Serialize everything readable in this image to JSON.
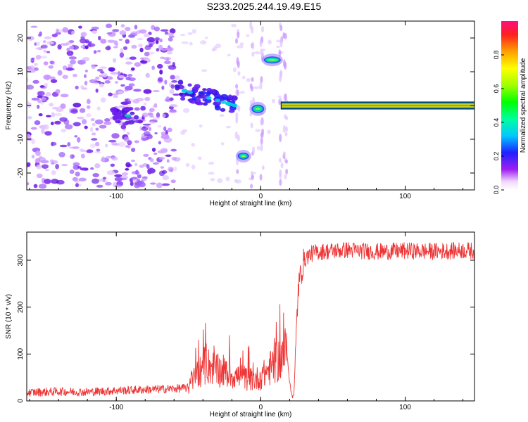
{
  "chart_data": [
    {
      "type": "heatmap",
      "title": "S233.2025.244.19.49.E15",
      "xlabel": "Height of straight line (km)",
      "ylabel": "Frequency (Hz)",
      "xlim": [
        -162,
        148
      ],
      "ylim": [
        -25,
        25
      ],
      "xticks": [
        -100,
        0,
        100
      ],
      "yticks": [
        -20,
        -10,
        0,
        10,
        20
      ],
      "colorbar": {
        "label": "Normalized spectral amplitude",
        "range": [
          0,
          1
        ],
        "ticks": [
          0.0,
          0.2,
          0.4,
          0.6,
          0.8
        ]
      },
      "features": [
        {
          "name": "scattered-noise",
          "x_range": [
            -162,
            -58
          ],
          "y_range": [
            -24,
            24
          ]
        },
        {
          "name": "low-freq-cluster",
          "x": -92,
          "y": -3,
          "amplitude": 0.35
        },
        {
          "name": "descending-trace",
          "x_range": [
            -58,
            -18
          ],
          "y_range": [
            5,
            0
          ],
          "amplitude": 0.35
        },
        {
          "name": "mid-blob-low",
          "x": -12,
          "y": -15,
          "amplitude": 0.45
        },
        {
          "name": "zero-blob",
          "x": -2,
          "y": -1,
          "amplitude": 0.4
        },
        {
          "name": "high-blob",
          "x": 8,
          "y": 13.5,
          "amplitude": 0.55
        },
        {
          "name": "steady-tone",
          "x_range": [
            18,
            148
          ],
          "y": 0,
          "amplitude": 0.95
        }
      ]
    },
    {
      "type": "line",
      "title": "",
      "xlabel": "Height of straight line (km)",
      "ylabel": "SNR (10 * v/v)",
      "xlim": [
        -162,
        148
      ],
      "ylim": [
        0,
        360
      ],
      "xticks": [
        -100,
        0,
        100
      ],
      "yticks": [
        0,
        100,
        200,
        300
      ],
      "series": [
        {
          "name": "SNR",
          "color": "#ee3333",
          "x": [
            -160,
            -140,
            -120,
            -100,
            -80,
            -60,
            -50,
            -45,
            -40,
            -35,
            -30,
            -25,
            -20,
            -15,
            -10,
            -5,
            0,
            5,
            10,
            15,
            18,
            20,
            21,
            22,
            23,
            24,
            25,
            26,
            28,
            30,
            33,
            36,
            40,
            50,
            60,
            80,
            100,
            120,
            140,
            148
          ],
          "values": [
            18,
            20,
            19,
            22,
            24,
            26,
            28,
            55,
            70,
            75,
            65,
            60,
            55,
            52,
            48,
            45,
            50,
            65,
            80,
            95,
            110,
            40,
            20,
            10,
            15,
            90,
            175,
            240,
            275,
            300,
            310,
            315,
            318,
            320,
            322,
            318,
            320,
            319,
            321,
            320
          ]
        }
      ]
    }
  ]
}
